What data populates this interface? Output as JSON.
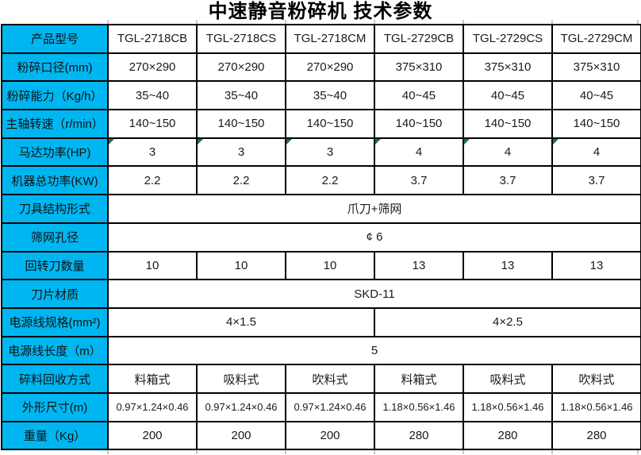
{
  "title": "中速静音粉碎机 技术参数",
  "colors": {
    "label_bg": "#00b6f0",
    "border": "#000000",
    "text": "#1a1a1a",
    "corner_marker": "#1e7145"
  },
  "table": {
    "rows": [
      {
        "label": "产品型号",
        "span": 1,
        "cells": [
          "TGL-2718CB",
          "TGL-2718CS",
          "TGL-2718CM",
          "TGL-2729CB",
          "TGL-2729CS",
          "TGL-2729CM"
        ]
      },
      {
        "label": "粉碎口径(mm)",
        "span": 1,
        "cells": [
          "270×290",
          "270×290",
          "270×290",
          "375×310",
          "375×310",
          "375×310"
        ]
      },
      {
        "label": "粉碎能力（Kg/h）",
        "span": 1,
        "cells": [
          "35~40",
          "35~40",
          "35~40",
          "40~45",
          "40~45",
          "40~45"
        ]
      },
      {
        "label": "主轴转速（r/min）",
        "span": 1,
        "cells": [
          "140~150",
          "140~150",
          "140~150",
          "140~150",
          "140~150",
          "140~150"
        ]
      },
      {
        "label": "马达功率(HP)",
        "span": 1,
        "corner_markers": true,
        "cells": [
          "3",
          "3",
          "3",
          "4",
          "4",
          "4"
        ]
      },
      {
        "label": "机器总功率(KW)",
        "span": 1,
        "cells": [
          "2.2",
          "2.2",
          "2.2",
          "3.7",
          "3.7",
          "3.7"
        ]
      },
      {
        "label": "刀具结构形式",
        "span": 6,
        "cells": [
          "爪刀+筛网"
        ]
      },
      {
        "label": "筛网孔径",
        "span": 6,
        "cells": [
          "¢ 6"
        ]
      },
      {
        "label": "回转刀数量",
        "span": 1,
        "cells": [
          "10",
          "10",
          "10",
          "13",
          "13",
          "13"
        ]
      },
      {
        "label": "刀片材质",
        "span": 6,
        "cells": [
          "SKD-11"
        ]
      },
      {
        "label": "电源线规格(mm²)",
        "span": 3,
        "cells": [
          "4×1.5",
          "4×2.5"
        ]
      },
      {
        "label": "电源线长度（m）",
        "span": 6,
        "cells": [
          "5"
        ]
      },
      {
        "label": "碎料回收方式",
        "span": 1,
        "cells": [
          "料箱式",
          "吸料式",
          "吹料式",
          "料箱式",
          "吸料式",
          "吹料式"
        ]
      },
      {
        "label": "外形尺寸(m)",
        "span": 1,
        "cells": [
          "0.97×1.24×0.46",
          "0.97×1.24×0.46",
          "0.97×1.24×0.46",
          "1.18×0.56×1.46",
          "1.18×0.56×1.46",
          "1.18×0.56×1.46"
        ]
      },
      {
        "label": "重量（Kg）",
        "span": 1,
        "cells": [
          "200",
          "200",
          "200",
          "280",
          "280",
          "280"
        ]
      }
    ]
  }
}
